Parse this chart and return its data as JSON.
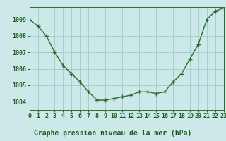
{
  "x": [
    0,
    1,
    2,
    3,
    4,
    5,
    6,
    7,
    8,
    9,
    10,
    11,
    12,
    13,
    14,
    15,
    16,
    17,
    18,
    19,
    20,
    21,
    22,
    23
  ],
  "y": [
    1009.0,
    1008.6,
    1008.0,
    1007.0,
    1006.2,
    1005.7,
    1005.2,
    1004.6,
    1004.1,
    1004.1,
    1004.2,
    1004.3,
    1004.4,
    1004.6,
    1004.6,
    1004.5,
    1004.6,
    1005.2,
    1005.7,
    1006.6,
    1007.5,
    1009.0,
    1009.5,
    1009.7
  ],
  "xlim": [
    0,
    23
  ],
  "ylim": [
    1003.5,
    1009.75
  ],
  "yticks": [
    1004,
    1005,
    1006,
    1007,
    1008,
    1009
  ],
  "xticks": [
    0,
    1,
    2,
    3,
    4,
    5,
    6,
    7,
    8,
    9,
    10,
    11,
    12,
    13,
    14,
    15,
    16,
    17,
    18,
    19,
    20,
    21,
    22,
    23
  ],
  "line_color": "#2d6a2d",
  "marker": "+",
  "marker_size": 4.0,
  "bg_color": "#cce8e8",
  "plot_bg_color": "#cce8e8",
  "grid_color": "#99cccc",
  "title": "Graphe pression niveau de la mer (hPa)",
  "title_color": "#1a5c1a",
  "title_fontsize": 7.0,
  "tick_fontsize": 6.0,
  "tick_color": "#1a5c1a",
  "spine_color": "#2d6a2d",
  "linewidth": 1.0,
  "marker_color": "#2d6a2d"
}
